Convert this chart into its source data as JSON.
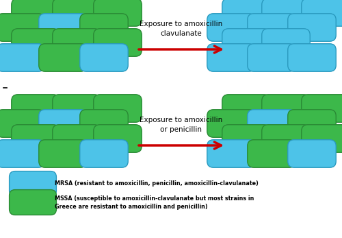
{
  "fig_width": 5.0,
  "fig_height": 3.47,
  "dpi": 100,
  "bg_color": "#ffffff",
  "mrsa_color": "#4dc3e8",
  "mssa_color": "#3cb84a",
  "mrsa_edge": "#2a9abf",
  "mssa_edge": "#2a8a35",
  "arrow_color": "#cc0000",
  "top_label": "Exposure to amoxicillin\nclavulanate",
  "bottom_label": "Exposure to amoxicillin\nor penicillin",
  "legend_mrsa": "MRSA (resistant to amoxicillin, penicillin, amoxicillin-clavulanate)",
  "legend_mssa_line1": "MSSA (susceptible to amoxicillin-clavulanate but most strains in",
  "legend_mssa_line2": "Greece are resistant to amoxicillin and penicillin)"
}
